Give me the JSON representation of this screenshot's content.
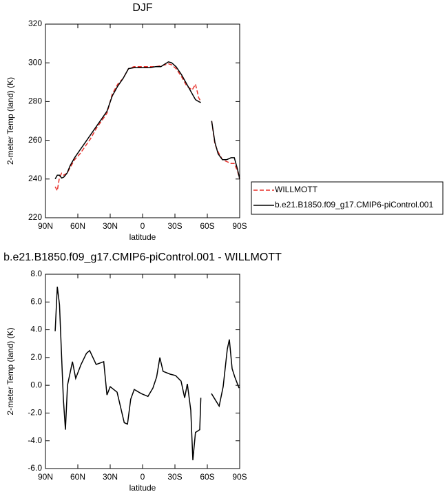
{
  "chart_data": [
    {
      "type": "line",
      "title": "DJF",
      "xlabel": "latitude",
      "ylabel": "2-meter Temp (land) (K)",
      "x": [
        81,
        79,
        77,
        75,
        73,
        70,
        67,
        63,
        58,
        53,
        48,
        43,
        38,
        33,
        28,
        23,
        18,
        13,
        8,
        3,
        -2,
        -7,
        -12,
        -17,
        -21,
        -24,
        -27,
        -31,
        -36,
        -41,
        -46,
        -49,
        -52,
        -54,
        -58,
        -62,
        -64,
        -67,
        -70,
        -74,
        -78,
        -82,
        -85,
        -88,
        -90
      ],
      "series": [
        {
          "name": "WILLMOTT",
          "color": "#e8302a",
          "dash": true,
          "values": [
            236,
            234,
            241,
            243,
            242,
            243,
            246,
            250,
            253,
            257,
            261,
            266,
            270,
            274,
            284,
            289,
            292,
            297,
            298,
            298,
            298,
            298,
            298,
            298.5,
            299,
            299.5,
            299,
            297,
            293,
            288,
            286,
            289,
            282,
            280,
            null,
            null,
            270,
            258,
            254,
            250,
            249,
            248,
            248,
            244,
            240
          ]
        },
        {
          "name": "b.e21.B1850.f09_g17.CMIP6-piControl.001",
          "color": "#000000",
          "dash": false,
          "values": [
            240,
            242,
            242,
            240.5,
            241,
            243,
            247,
            251,
            255,
            259,
            263,
            267,
            271,
            275,
            283,
            288,
            292,
            297,
            297.5,
            297.5,
            297.5,
            297.5,
            298,
            298,
            299.5,
            300.5,
            300,
            298,
            294,
            289,
            284,
            281,
            280,
            279.5,
            null,
            null,
            270,
            259,
            253,
            250,
            250,
            251,
            251,
            245,
            240
          ]
        }
      ],
      "xlim": [
        90,
        -90
      ],
      "xticks": [
        {
          "value": 90,
          "label": "90N"
        },
        {
          "value": 60,
          "label": "60N"
        },
        {
          "value": 30,
          "label": "30N"
        },
        0,
        {
          "value": -30,
          "label": "30S"
        },
        {
          "value": -60,
          "label": "60S"
        },
        {
          "value": -90,
          "label": "90S"
        }
      ],
      "ylim": [
        220,
        320
      ],
      "yticks": [
        220,
        240,
        260,
        280,
        300,
        320
      ],
      "legend": "right"
    },
    {
      "type": "line",
      "title": "b.e21.B1850.f09_g17.CMIP6-piControl.001 - WILLMOTT",
      "xlabel": "latitude",
      "ylabel": "2-meter Temp (land) (K)",
      "x": [
        81,
        79,
        77,
        75,
        73.4,
        71.5,
        69.6,
        65,
        62,
        57,
        52,
        49,
        43,
        36,
        33,
        30,
        23.6,
        17,
        14,
        11,
        7.7,
        1.3,
        -5,
        -9.6,
        -13,
        -16,
        -19,
        -25.5,
        -30.6,
        -35.7,
        -39,
        -41.5,
        -44.7,
        -46.6,
        -49,
        -53,
        -54,
        -58,
        -63.8,
        -67,
        -71,
        -74.7,
        -78.5,
        -80.4,
        -83,
        -85.5,
        -89.4
      ],
      "series": [
        {
          "name": "b.e21.B1850.f09_g17.CMIP6-piControl.001 - WILLMOTT",
          "color": "#000000",
          "dash": false,
          "values": [
            3.9,
            7.1,
            5.8,
            2,
            -1,
            -3.2,
            0,
            1.7,
            0.5,
            1.5,
            2.3,
            2.5,
            1.5,
            1.7,
            -0.7,
            -0.1,
            -0.5,
            -2.7,
            -2.8,
            -1,
            -0.3,
            -0.6,
            -0.8,
            -0.2,
            0.6,
            2,
            1,
            0.8,
            0.7,
            0.3,
            -0.9,
            0.1,
            -1.8,
            -5.4,
            -3.4,
            -3.2,
            -0.9,
            null,
            -0.6,
            -1,
            -1.5,
            -0.1,
            2.6,
            3.3,
            1.2,
            0.6,
            -0.2
          ]
        }
      ],
      "xlim": [
        90,
        -90
      ],
      "xticks": [
        {
          "value": 90,
          "label": "90N"
        },
        {
          "value": 60,
          "label": "60N"
        },
        {
          "value": 30,
          "label": "30N"
        },
        0,
        {
          "value": -30,
          "label": "30S"
        },
        {
          "value": -60,
          "label": "60S"
        },
        {
          "value": -90,
          "label": "90S"
        }
      ],
      "ylim": [
        -6,
        8
      ],
      "yticks": [
        {
          "value": -6,
          "label": "-6.0"
        },
        {
          "value": -4,
          "label": "-4.0"
        },
        {
          "value": -2,
          "label": "-2.0"
        },
        {
          "value": 0,
          "label": "0.0"
        },
        {
          "value": 2,
          "label": "2.0"
        },
        {
          "value": 4,
          "label": "4.0"
        },
        {
          "value": 6,
          "label": "6.0"
        },
        {
          "value": 8,
          "label": "8.0"
        }
      ]
    }
  ]
}
